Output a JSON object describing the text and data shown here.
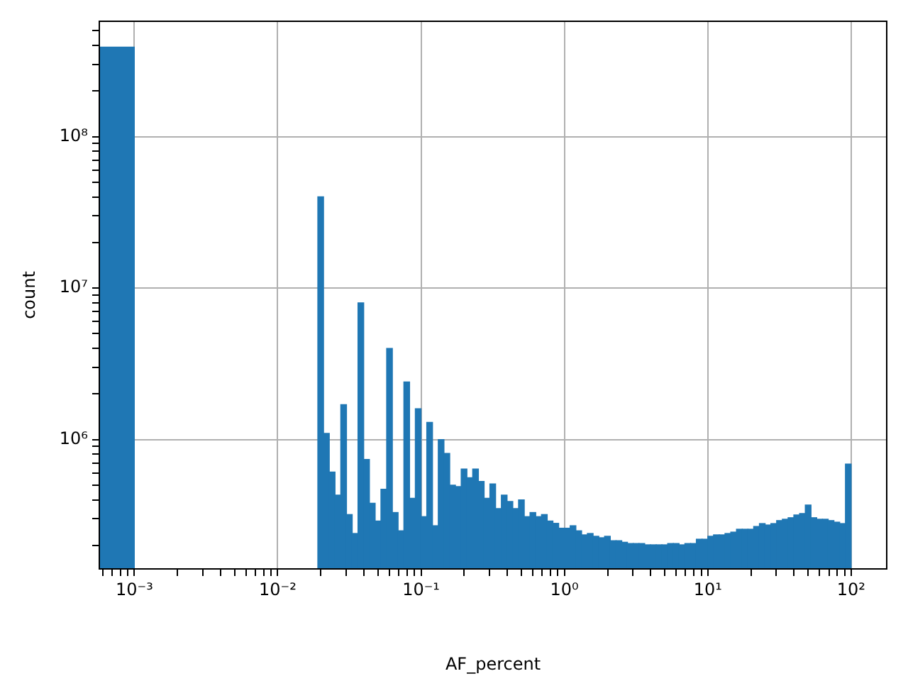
{
  "chart_data": {
    "type": "histogram",
    "xlabel": "AF_percent",
    "ylabel": "count",
    "color": "#1f77b4",
    "log": "xy",
    "grid": true,
    "xlim": [
      0.00057,
      177
    ],
    "ylim": [
      140000,
      577000000
    ],
    "bins": [
      0.00057,
      0.001,
      0.01905,
      0.02089,
      0.02291,
      0.02512,
      0.02754,
      0.0302,
      0.03311,
      0.03631,
      0.03981,
      0.04365,
      0.04786,
      0.05248,
      0.05754,
      0.0631,
      0.06918,
      0.07586,
      0.08318,
      0.0912,
      0.1,
      0.1096,
      0.1202,
      0.1318,
      0.1445,
      0.1585,
      0.1738,
      0.1905,
      0.2089,
      0.2291,
      0.2512,
      0.2754,
      0.302,
      0.3311,
      0.3631,
      0.3981,
      0.4365,
      0.4786,
      0.5248,
      0.5754,
      0.631,
      0.6918,
      0.7586,
      0.8318,
      0.912,
      1,
      1.096,
      1.202,
      1.318,
      1.445,
      1.585,
      1.738,
      1.905,
      2.089,
      2.291,
      2.512,
      2.754,
      3.02,
      3.311,
      3.631,
      3.981,
      4.365,
      4.786,
      5.248,
      5.754,
      6.31,
      6.918,
      7.586,
      8.318,
      9.12,
      10,
      10.96,
      12.02,
      13.18,
      14.45,
      15.85,
      17.38,
      19.05,
      20.89,
      22.91,
      25.12,
      27.54,
      30.2,
      33.11,
      36.31,
      39.81,
      43.65,
      47.86,
      52.48,
      57.54,
      63.1,
      69.18,
      75.86,
      83.18,
      91.2,
      100
    ],
    "values": [
      390000000,
      null,
      40000000,
      1100000,
      610000,
      430000,
      1700000,
      320000,
      240000,
      8000000,
      740000,
      380000,
      290000,
      470000,
      4000000,
      330000,
      250000,
      2400000,
      410000,
      1600000,
      310000,
      1300000,
      270000,
      1000000,
      810000,
      500000,
      490000,
      640000,
      560000,
      640000,
      530000,
      410000,
      510000,
      350000,
      430000,
      390000,
      350000,
      400000,
      310000,
      330000,
      310000,
      320000,
      290000,
      280000,
      260000,
      260000,
      270000,
      250000,
      235000,
      240000,
      230000,
      225000,
      230000,
      215000,
      215000,
      210000,
      206000,
      206000,
      206000,
      202000,
      202000,
      202000,
      202000,
      206000,
      206000,
      202000,
      206000,
      206000,
      220000,
      220000,
      230000,
      235000,
      235000,
      240000,
      245000,
      256000,
      256000,
      256000,
      267000,
      279000,
      273000,
      279000,
      292000,
      298000,
      305000,
      318000,
      325000,
      370000,
      305000,
      298000,
      298000,
      292000,
      285000,
      279000,
      690000
    ],
    "xticks": [
      {
        "value": 0.0006,
        "label": null
      },
      {
        "value": 0.0007,
        "label": null
      },
      {
        "value": 0.0008,
        "label": null
      },
      {
        "value": 0.0009,
        "label": null
      },
      {
        "value": 0.001,
        "label": "10⁻³"
      },
      {
        "value": 0.002,
        "label": null
      },
      {
        "value": 0.003,
        "label": null
      },
      {
        "value": 0.004,
        "label": null
      },
      {
        "value": 0.005,
        "label": null
      },
      {
        "value": 0.006,
        "label": null
      },
      {
        "value": 0.007,
        "label": null
      },
      {
        "value": 0.008,
        "label": null
      },
      {
        "value": 0.009,
        "label": null
      },
      {
        "value": 0.01,
        "label": "10⁻²"
      },
      {
        "value": 0.02,
        "label": null
      },
      {
        "value": 0.03,
        "label": null
      },
      {
        "value": 0.04,
        "label": null
      },
      {
        "value": 0.05,
        "label": null
      },
      {
        "value": 0.06,
        "label": null
      },
      {
        "value": 0.07,
        "label": null
      },
      {
        "value": 0.08,
        "label": null
      },
      {
        "value": 0.09,
        "label": null
      },
      {
        "value": 0.1,
        "label": "10⁻¹"
      },
      {
        "value": 0.2,
        "label": null
      },
      {
        "value": 0.3,
        "label": null
      },
      {
        "value": 0.4,
        "label": null
      },
      {
        "value": 0.5,
        "label": null
      },
      {
        "value": 0.6,
        "label": null
      },
      {
        "value": 0.7,
        "label": null
      },
      {
        "value": 0.8,
        "label": null
      },
      {
        "value": 0.9,
        "label": null
      },
      {
        "value": 1,
        "label": "10⁰"
      },
      {
        "value": 2,
        "label": null
      },
      {
        "value": 3,
        "label": null
      },
      {
        "value": 4,
        "label": null
      },
      {
        "value": 5,
        "label": null
      },
      {
        "value": 6,
        "label": null
      },
      {
        "value": 7,
        "label": null
      },
      {
        "value": 8,
        "label": null
      },
      {
        "value": 9,
        "label": null
      },
      {
        "value": 10,
        "label": "10¹"
      },
      {
        "value": 20,
        "label": null
      },
      {
        "value": 30,
        "label": null
      },
      {
        "value": 40,
        "label": null
      },
      {
        "value": 50,
        "label": null
      },
      {
        "value": 60,
        "label": null
      },
      {
        "value": 70,
        "label": null
      },
      {
        "value": 80,
        "label": null
      },
      {
        "value": 90,
        "label": null
      },
      {
        "value": 100,
        "label": "10²"
      }
    ],
    "yticks": [
      {
        "value": 200000,
        "label": null
      },
      {
        "value": 300000,
        "label": null
      },
      {
        "value": 400000,
        "label": null
      },
      {
        "value": 500000,
        "label": null
      },
      {
        "value": 600000,
        "label": null
      },
      {
        "value": 700000,
        "label": null
      },
      {
        "value": 800000,
        "label": null
      },
      {
        "value": 900000,
        "label": null
      },
      {
        "value": 1000000,
        "label": "10⁶"
      },
      {
        "value": 2000000,
        "label": null
      },
      {
        "value": 3000000,
        "label": null
      },
      {
        "value": 4000000,
        "label": null
      },
      {
        "value": 5000000,
        "label": null
      },
      {
        "value": 6000000,
        "label": null
      },
      {
        "value": 7000000,
        "label": null
      },
      {
        "value": 8000000,
        "label": null
      },
      {
        "value": 9000000,
        "label": null
      },
      {
        "value": 10000000,
        "label": "10⁷"
      },
      {
        "value": 20000000,
        "label": null
      },
      {
        "value": 30000000,
        "label": null
      },
      {
        "value": 40000000,
        "label": null
      },
      {
        "value": 50000000,
        "label": null
      },
      {
        "value": 60000000,
        "label": null
      },
      {
        "value": 70000000,
        "label": null
      },
      {
        "value": 80000000,
        "label": null
      },
      {
        "value": 90000000,
        "label": null
      },
      {
        "value": 100000000,
        "label": "10⁸"
      },
      {
        "value": 200000000,
        "label": null
      },
      {
        "value": 300000000,
        "label": null
      },
      {
        "value": 400000000,
        "label": null
      },
      {
        "value": 500000000,
        "label": null
      }
    ]
  }
}
